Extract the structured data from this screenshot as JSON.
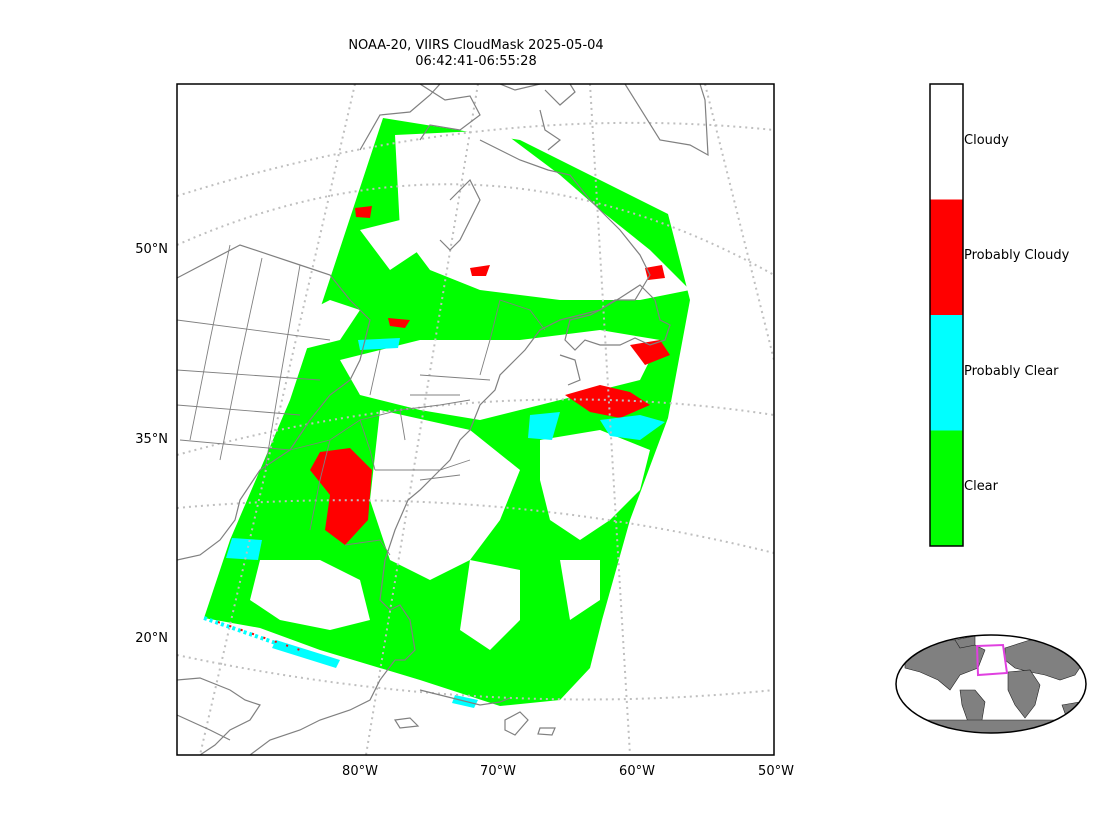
{
  "title": {
    "line1": "NOAA-20, VIIRS CloudMask 2025-05-04",
    "line2": "06:42:41-06:55:28"
  },
  "map": {
    "projection": "lambert-conformal",
    "lat_ticks": [
      "50°N",
      "35°N",
      "20°N"
    ],
    "lon_ticks": [
      "80°W",
      "70°W",
      "60°W",
      "50°W"
    ],
    "coastline_color": "#808080",
    "gridline_color": "#bfbfbf",
    "swath_corners": [
      "approx 50°N 93°W",
      "approx 54°N 77°W",
      "approx 33°N 57°W",
      "approx 20°N 62°W",
      "approx 22°N 90°W"
    ]
  },
  "colorbar": {
    "categories": [
      {
        "label": "Cloudy",
        "color": "#ffffff"
      },
      {
        "label": "Probably Cloudy",
        "color": "#ff0000"
      },
      {
        "label": "Probably Clear",
        "color": "#00ffff"
      },
      {
        "label": "Clear",
        "color": "#00ff00"
      }
    ]
  },
  "inset": {
    "type": "global-locator-map",
    "land_color": "#808080",
    "box_color": "#e040e0"
  }
}
